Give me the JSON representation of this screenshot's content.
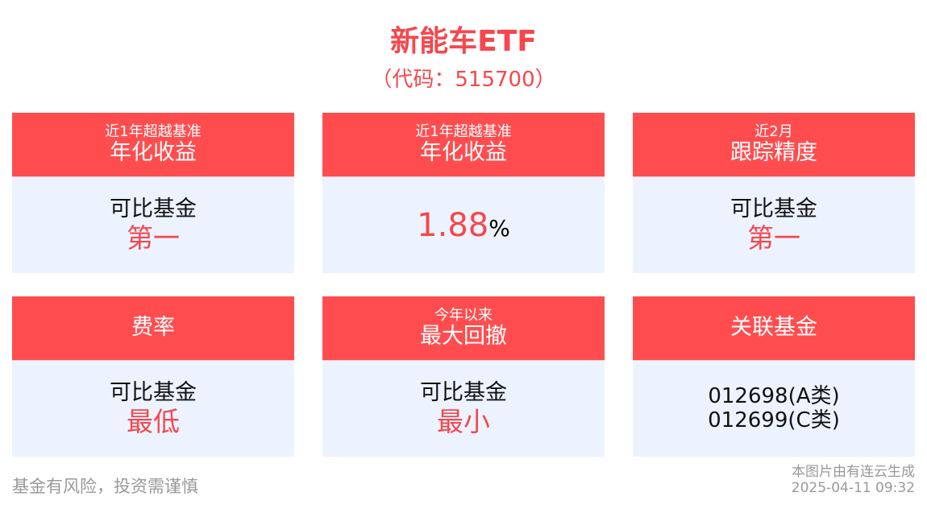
{
  "title": "新能车ETF",
  "code": "（代码：515700）",
  "cards": [
    {
      "sub": "近1年超越基准",
      "head": "年化收益",
      "line1": "可比基金",
      "line2": "第一"
    },
    {
      "sub": "近1年超越基准",
      "head": "年化收益",
      "value": "1.88",
      "unit": "%"
    },
    {
      "sub": "近2月",
      "head": "跟踪精度",
      "line1": "可比基金",
      "line2": "第一"
    },
    {
      "head": "费率",
      "line1": "可比基金",
      "line2": "最低"
    },
    {
      "sub": "今年以来",
      "head": "最大回撤",
      "line1": "可比基金",
      "line2": "最小"
    },
    {
      "head": "关联基金",
      "codes": [
        "012698(A类)",
        "012699(C类)"
      ]
    }
  ],
  "footer": {
    "risk": "基金有风险，投资需谨慎",
    "source": "本图片由有连云生成",
    "timestamp": "2025-04-11 09:32"
  },
  "colors": {
    "accent": "#ff4d4f",
    "body": "#ecf3ff",
    "title": "#f5474d"
  }
}
